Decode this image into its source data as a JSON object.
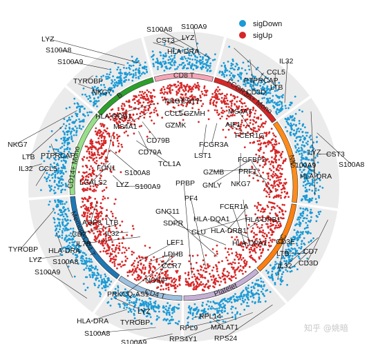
{
  "chart_data": {
    "type": "scatter",
    "title": "",
    "legend": {
      "placement": "top-right",
      "items": [
        {
          "name": "sigDown",
          "color": "#1a9ad6"
        },
        {
          "name": "sigUp",
          "color": "#d62728"
        }
      ]
    },
    "clusters": [
      {
        "name": "CD8 T",
        "color": "#f4a6b7",
        "start_deg": 75,
        "end_deg": 105,
        "up_genes": [
          "NKG7",
          "CST7",
          "CCL5",
          "GZMH",
          "GZMK"
        ],
        "down_genes": [
          "S100A8",
          "S100A9",
          "CST3",
          "LYZ",
          "HLA-DRA"
        ]
      },
      {
        "name": "FCGR3A+ Mono",
        "color": "#d62728",
        "start_deg": 36,
        "end_deg": 74,
        "up_genes": [
          "MS4A7",
          "AIF1",
          "FCER1G",
          "FCGR3A",
          "LST1"
        ],
        "down_genes": [
          "IL32",
          "CCL5",
          "PTPRCAP",
          "CD3D",
          "LTB"
        ]
      },
      {
        "name": "NK",
        "color": "#ff8c1a",
        "start_deg": -8,
        "end_deg": 35,
        "up_genes": [
          "FGFBP2",
          "PRF1",
          "GZMB",
          "GNLY",
          "NKG7"
        ],
        "down_genes": [
          "LYZ",
          "S100A9",
          "CST3",
          "S100A8",
          "HLA-DRA"
        ]
      },
      {
        "name": "DC",
        "color": "#ff7f0e",
        "start_deg": -48,
        "end_deg": -9,
        "up_genes": [
          "FCER1A",
          "HLA-DQA1",
          "HLA-DPB1",
          "CLU",
          "HLA-DRB1",
          "HLA-DPA1"
        ],
        "down_genes": [
          "CD3E",
          "CD7",
          "LTB",
          "IL32",
          "CD3D"
        ]
      },
      {
        "name": "Platelet",
        "color": "#c5b0d5",
        "start_deg": -90,
        "end_deg": -49,
        "up_genes": [
          "PPBP",
          "PF4",
          "GNG11",
          "SDPR"
        ],
        "down_genes": [
          "RPL14",
          "MALAT1",
          "RPL9",
          "RPS4Y1",
          "RPS24"
        ]
      },
      {
        "name": "CD4 T",
        "color": "#9ec1e0",
        "start_deg": -125,
        "end_deg": -91,
        "up_genes": [
          "LEF1",
          "LDHB",
          "CCR7",
          "NOSIP",
          "PRKCQ-AS1"
        ],
        "down_genes": [
          "LYZ",
          "HLA-DRA",
          "TYROBP",
          "S100A8",
          "S100A9"
        ]
      },
      {
        "name": "Memory CD4 T",
        "color": "#1f77b4",
        "start_deg": -175,
        "end_deg": -126,
        "up_genes": [
          "AQP3",
          "LTB",
          "CD2",
          "IL32",
          "IL7R"
        ],
        "down_genes": [
          "TYROBP",
          "HLA-DRA",
          "LYZ",
          "S100A8",
          "S100A9"
        ]
      },
      {
        "name": "CD14+ Mono",
        "color": "#98df8a",
        "start_deg": 140,
        "end_deg": 184,
        "up_genes": [
          "FCN1",
          "S100A8",
          "LGALS2",
          "LYZ",
          "S100A9"
        ],
        "down_genes": [
          "NKG7",
          "LTB",
          "PTPRCAP",
          "IL32",
          "CCL5"
        ]
      },
      {
        "name": "B",
        "color": "#2ca02c",
        "start_deg": 106,
        "end_deg": 139,
        "up_genes": [
          "HLA-DQB1",
          "MS4A1",
          "CD79B",
          "CD79A",
          "TCL1A"
        ],
        "down_genes": [
          "LYZ",
          "S100A8",
          "S100A9",
          "TYROBP",
          "NKG7"
        ]
      }
    ],
    "watermark": "知乎 @姚暗"
  }
}
